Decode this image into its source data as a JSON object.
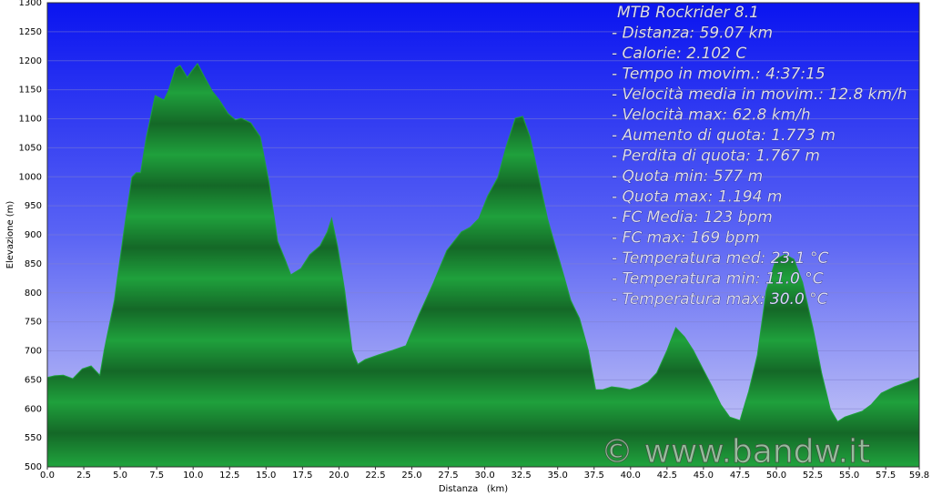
{
  "chart_data": {
    "type": "area",
    "title": "MTB Rockrider 8.1",
    "annotations": [
      "- Distanza: 59.07 km",
      "- Calorie: 2.102 C",
      "- Tempo in movim.: 4:37:15",
      "- Velocità media in movim.: 12.8 km/h",
      "- Velocità max: 62.8 km/h",
      "- Aumento di quota: 1.773 m",
      "- Perdita di quota: 1.767 m",
      "- Quota min: 577 m",
      "- Quota max: 1.194 m",
      "- FC Media: 123 bpm",
      "- FC max: 169 bpm",
      "- Temperatura med: 23.1 °C",
      "- Temperatura min: 11.0 °C",
      "- Temperatura max: 30.0 °C"
    ],
    "watermark": "© www.bandw.it",
    "x_label": "Distanza   (km)",
    "y_label": "Elevazione (m)",
    "color": "#1fa03c",
    "grid": true,
    "x": [
      0,
      0.5,
      1.1,
      1.75,
      2.4,
      3.0,
      3.6,
      3.9,
      4.6,
      5.2,
      5.8,
      6.1,
      6.4,
      6.8,
      7.4,
      8.0,
      8.3,
      8.8,
      9.1,
      9.6,
      9.9,
      10.3,
      10.8,
      11.3,
      11.8,
      12.4,
      12.9,
      13.3,
      13.96,
      14.6,
      15.2,
      15.8,
      16.3,
      16.7,
      17.4,
      18.0,
      18.7,
      19.2,
      19.5,
      19.9,
      20.4,
      20.9,
      21.3,
      21.8,
      22.7,
      23.7,
      24.6,
      25.5,
      26.5,
      27.4,
      28.4,
      29.0,
      29.6,
      30.2,
      30.9,
      31.5,
      32.1,
      32.6,
      33.1,
      33.7,
      34.3,
      35.1,
      35.9,
      36.5,
      37.1,
      37.6,
      38.1,
      38.7,
      39.3,
      39.95,
      40.6,
      41.2,
      41.8,
      42.5,
      43.1,
      43.7,
      44.3,
      44.96,
      45.6,
      46.2,
      46.8,
      47.5,
      48.1,
      48.7,
      49.3,
      49.96,
      50.6,
      51.2,
      51.8,
      52.5,
      53.1,
      53.7,
      54.2,
      54.7,
      55.3,
      55.9,
      56.5,
      57.2,
      58.1,
      59.0,
      59.8
    ],
    "values": [
      654,
      657,
      658,
      652,
      669,
      674,
      658,
      701,
      787,
      897,
      999,
      1007,
      1007,
      1069,
      1140,
      1132,
      1148,
      1187,
      1192,
      1171,
      1182,
      1195,
      1171,
      1148,
      1132,
      1109,
      1098,
      1101,
      1093,
      1069,
      991,
      889,
      858,
      831,
      842,
      866,
      881,
      905,
      928,
      881,
      803,
      701,
      677,
      685,
      693,
      701,
      709,
      763,
      818,
      873,
      905,
      913,
      928,
      967,
      999,
      1054,
      1101,
      1104,
      1069,
      999,
      928,
      858,
      787,
      756,
      701,
      633,
      633,
      638,
      636,
      633,
      638,
      646,
      662,
      701,
      740,
      724,
      701,
      669,
      638,
      607,
      586,
      580,
      630,
      693,
      803,
      858,
      866,
      858,
      818,
      740,
      662,
      599,
      578,
      586,
      591,
      596,
      607,
      627,
      638,
      646,
      654
    ],
    "xlim": [
      0,
      59.8
    ],
    "ylim": [
      500,
      1300
    ],
    "xticks": [
      {
        "value": 0,
        "label": "0.0"
      },
      2.5,
      {
        "value": 5,
        "label": "5.0"
      },
      7.5,
      {
        "value": 10,
        "label": "10.0"
      },
      12.5,
      {
        "value": 15,
        "label": "15.0"
      },
      17.5,
      {
        "value": 20,
        "label": "20.0"
      },
      22.5,
      {
        "value": 25,
        "label": "25.0"
      },
      27.5,
      {
        "value": 30,
        "label": "30.0"
      },
      32.5,
      {
        "value": 35,
        "label": "35.0"
      },
      37.5,
      {
        "value": 40,
        "label": "40.0"
      },
      42.5,
      {
        "value": 45,
        "label": "45.0"
      },
      47.5,
      {
        "value": 50,
        "label": "50.0"
      },
      52.5,
      {
        "value": 55,
        "label": "55.0"
      },
      57.5,
      59.8
    ],
    "yticks": [
      500,
      550,
      600,
      650,
      700,
      750,
      800,
      850,
      900,
      950,
      1000,
      1050,
      1100,
      1150,
      1200,
      1250,
      1300
    ]
  }
}
